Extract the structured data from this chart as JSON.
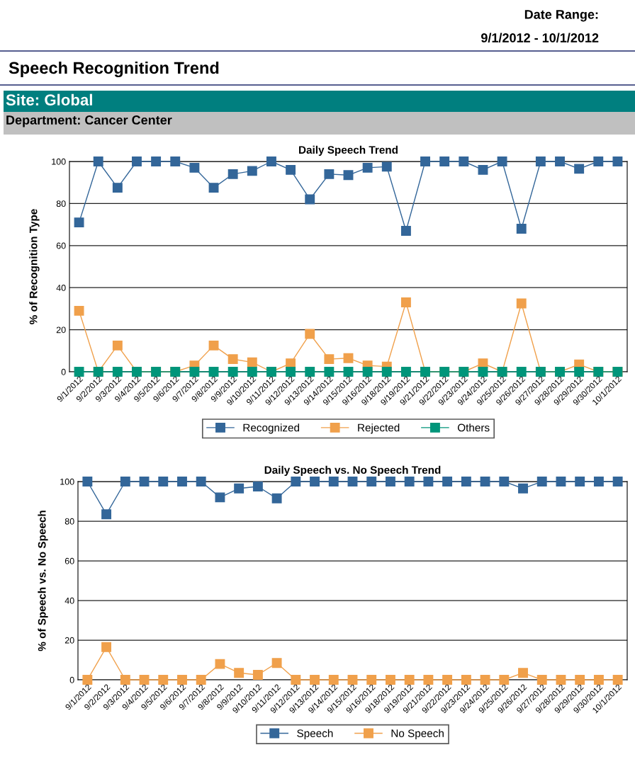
{
  "chart_data": [
    {
      "type": "other",
      "title": "Speech Recognition Trend",
      "annotations": [
        "Date Range:",
        "9/1/2012 - 10/1/2012",
        "Site: Global",
        "Department: Cancer Center"
      ]
    },
    {
      "type": "line",
      "title": "Daily Speech Trend",
      "ylabel": "% of Recognition Type",
      "categories": [
        "9/1/2012",
        "9/2/2012",
        "9/3/2012",
        "9/4/2012",
        "9/5/2012",
        "9/6/2012",
        "9/7/2012",
        "9/8/2012",
        "9/9/2012",
        "9/10/2012",
        "9/11/2012",
        "9/12/2012",
        "9/13/2012",
        "9/14/2012",
        "9/15/2012",
        "9/16/2012",
        "9/18/2012",
        "9/19/2012",
        "9/21/2012",
        "9/22/2012",
        "9/23/2012",
        "9/24/2012",
        "9/25/2012",
        "9/26/2012",
        "9/27/2012",
        "9/28/2012",
        "9/29/2012",
        "9/30/2012",
        "10/1/2012"
      ],
      "series": [
        {
          "name": "Recognized",
          "color": "#336699",
          "values": [
            71,
            100,
            87.5,
            100,
            100,
            100,
            97,
            87.5,
            94,
            95.5,
            100,
            96,
            82,
            94,
            93.5,
            97,
            97.5,
            67,
            100,
            100,
            100,
            96,
            100,
            68,
            100,
            100,
            96.5,
            100,
            100
          ]
        },
        {
          "name": "Rejected",
          "color": "#f0a04b",
          "values": [
            29,
            0,
            12.5,
            0,
            0,
            0,
            3,
            12.5,
            6,
            4.5,
            0,
            4,
            18,
            6,
            6.5,
            3,
            2.5,
            33,
            0,
            0,
            0,
            4,
            0,
            32.5,
            0,
            0,
            3.5,
            0,
            0
          ]
        },
        {
          "name": "Others",
          "color": "#00957a",
          "values": [
            0,
            0,
            0,
            0,
            0,
            0,
            0,
            0,
            0,
            0,
            0,
            0,
            0,
            0,
            0,
            0,
            0,
            0,
            0,
            0,
            0,
            0,
            0,
            0,
            0,
            0,
            0,
            0,
            0
          ]
        }
      ],
      "ylim": [
        0,
        100
      ],
      "yticks": [
        0,
        20,
        40,
        60,
        80,
        100
      ],
      "grid": "y",
      "legend": "bottom",
      "marker": "square",
      "line_style": "solid"
    },
    {
      "type": "line",
      "title": "Daily Speech vs. No Speech Trend",
      "ylabel": "% of Speech vs. No Speech",
      "categories": [
        "9/1/2012",
        "9/2/2012",
        "9/3/2012",
        "9/4/2012",
        "9/5/2012",
        "9/6/2012",
        "9/7/2012",
        "9/8/2012",
        "9/9/2012",
        "9/10/2012",
        "9/11/2012",
        "9/12/2012",
        "9/13/2012",
        "9/14/2012",
        "9/15/2012",
        "9/16/2012",
        "9/18/2012",
        "9/19/2012",
        "9/21/2012",
        "9/22/2012",
        "9/23/2012",
        "9/24/2012",
        "9/25/2012",
        "9/26/2012",
        "9/27/2012",
        "9/28/2012",
        "9/29/2012",
        "9/30/2012",
        "10/1/2012"
      ],
      "series": [
        {
          "name": "Speech",
          "color": "#336699",
          "values": [
            100,
            83.5,
            100,
            100,
            100,
            100,
            100,
            92,
            96.5,
            97.5,
            91.5,
            100,
            100,
            100,
            100,
            100,
            100,
            100,
            100,
            100,
            100,
            100,
            100,
            96.5,
            100,
            100,
            100,
            100,
            100
          ]
        },
        {
          "name": "No Speech",
          "color": "#f0a04b",
          "values": [
            0,
            16.5,
            0,
            0,
            0,
            0,
            0,
            8,
            3.5,
            2.5,
            8.5,
            0,
            0,
            0,
            0,
            0,
            0,
            0,
            0,
            0,
            0,
            0,
            0,
            3.5,
            0,
            0,
            0,
            0,
            0
          ]
        }
      ],
      "ylim": [
        0,
        100
      ],
      "yticks": [
        0,
        20,
        40,
        60,
        80,
        100
      ],
      "grid": "y",
      "legend": "bottom",
      "marker": "square",
      "line_style": "solid"
    }
  ]
}
